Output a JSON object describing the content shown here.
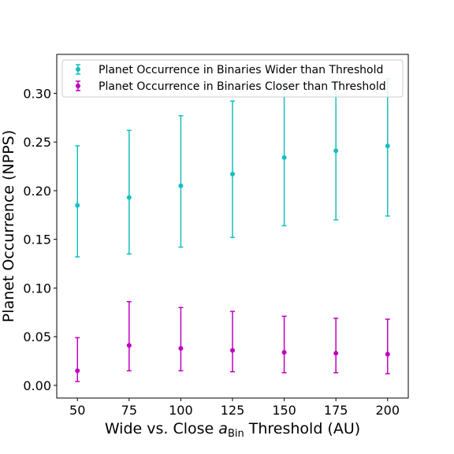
{
  "chart_data": {
    "type": "scatter",
    "x": [
      50,
      75,
      100,
      125,
      150,
      175,
      200
    ],
    "xlim": [
      40,
      210
    ],
    "ylim": [
      -0.013,
      0.34
    ],
    "xticks": [
      50,
      75,
      100,
      125,
      150,
      175,
      200
    ],
    "yticks": [
      0.0,
      0.05,
      0.1,
      0.15,
      0.2,
      0.25,
      0.3
    ],
    "ytick_labels": [
      "0.00",
      "0.05",
      "0.10",
      "0.15",
      "0.20",
      "0.25",
      "0.30"
    ],
    "xlabel_prefix": "Wide vs. Close ",
    "xlabel_var": "a",
    "xlabel_sub": "Bin",
    "xlabel_suffix": " Threshold (AU)",
    "ylabel": "Planet Occurrence (NPPS)",
    "grid": false,
    "legend_position": "top",
    "series": [
      {
        "name": "Planet Occurrence in Binaries Wider than Threshold",
        "color": "#17bfbf",
        "values": [
          0.185,
          0.193,
          0.205,
          0.217,
          0.234,
          0.241,
          0.246
        ],
        "err_low": [
          0.132,
          0.135,
          0.142,
          0.152,
          0.164,
          0.17,
          0.174
        ],
        "err_high": [
          0.246,
          0.262,
          0.277,
          0.292,
          0.307,
          0.312,
          0.315
        ]
      },
      {
        "name": "Planet Occurrence in Binaries Closer than Threshold",
        "color": "#bf00bf",
        "values": [
          0.015,
          0.041,
          0.038,
          0.036,
          0.034,
          0.033,
          0.032
        ],
        "err_low": [
          0.004,
          0.015,
          0.015,
          0.014,
          0.013,
          0.013,
          0.012
        ],
        "err_high": [
          0.049,
          0.086,
          0.08,
          0.076,
          0.071,
          0.069,
          0.068
        ]
      }
    ]
  }
}
